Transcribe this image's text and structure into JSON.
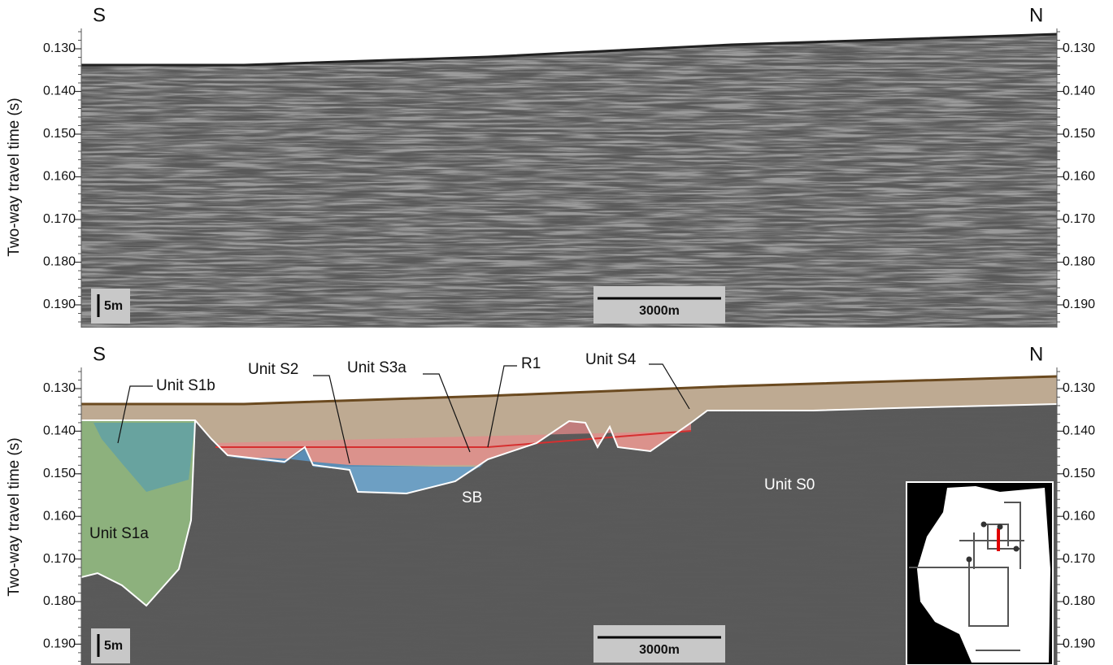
{
  "panels": [
    {
      "left_label": "S",
      "right_label": "N",
      "y_axis_label": "Two-way travel time (s)",
      "ticks": [
        "0.130",
        "0.140",
        "0.150",
        "0.160",
        "0.170",
        "0.180",
        "0.190"
      ],
      "vertical_scale": "5m",
      "horizontal_scale": "3000m"
    },
    {
      "left_label": "S",
      "right_label": "N",
      "y_axis_label": "Two-way travel time (s)",
      "ticks": [
        "0.130",
        "0.140",
        "0.150",
        "0.160",
        "0.170",
        "0.180",
        "0.190"
      ],
      "vertical_scale": "5m",
      "horizontal_scale": "3000m",
      "annotations": [
        "Unit S1b",
        "Unit S2",
        "Unit S3a",
        "R1",
        "Unit S4",
        "SB",
        "Unit S0",
        "Unit S1a"
      ]
    }
  ]
}
